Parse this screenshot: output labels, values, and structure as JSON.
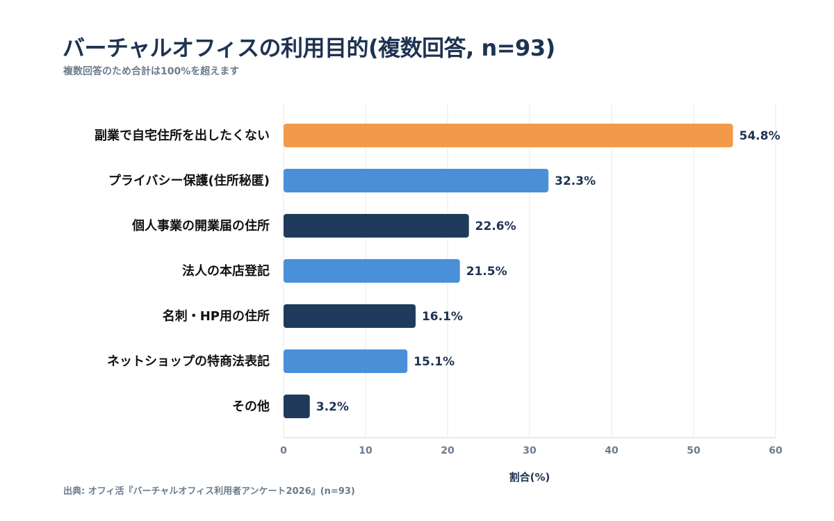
{
  "header": {
    "title": "バーチャルオフィスの利用目的(複数回答, n=93)",
    "subtitle": "複数回答のため合計は100%を超えます"
  },
  "footer": {
    "source": "出典: オフィ活『バーチャルオフィス利用者アンケート2026』(n=93)"
  },
  "chart_data": {
    "type": "bar",
    "orientation": "horizontal",
    "categories": [
      "副業で自宅住所を出したくない",
      "プライバシー保護(住所秘匿)",
      "個人事業の開業届の住所",
      "法人の本店登記",
      "名刺・HP用の住所",
      "ネットショップの特商法表記",
      "その他"
    ],
    "values": [
      54.8,
      32.3,
      22.6,
      21.5,
      16.1,
      15.1,
      3.2
    ],
    "value_labels": [
      "54.8%",
      "32.3%",
      "22.6%",
      "21.5%",
      "16.1%",
      "15.1%",
      "3.2%"
    ],
    "bar_colors": [
      "#f29a4a",
      "#4a90d9",
      "#1f3a5a",
      "#4a90d9",
      "#1f3a5a",
      "#4a90d9",
      "#1f3a5a"
    ],
    "xlabel": "割合(%)",
    "xlim": [
      0,
      60
    ],
    "xticks": [
      0,
      10,
      20,
      30,
      40,
      50,
      60
    ],
    "grid": "vertical"
  }
}
